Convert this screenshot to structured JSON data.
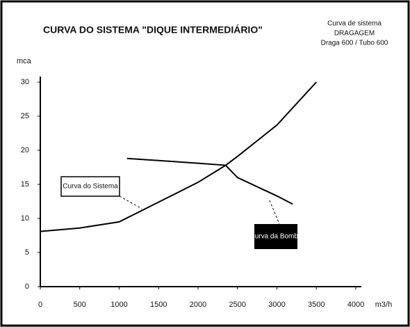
{
  "chart_data": {
    "type": "line",
    "title": "CURVA DO SISTEMA \"DIQUE INTERMEDIÁRIO\"",
    "subtitle": [
      "Curva de sistema",
      "DRAGAGEM",
      "Draga 600 / Tubo 600"
    ],
    "y_label": "mca",
    "x_label": "m3/h",
    "xlim": [
      0,
      4000
    ],
    "xticks": [
      0,
      500,
      1000,
      1500,
      2000,
      2500,
      3000,
      3500,
      4000
    ],
    "ylim": [
      0,
      30
    ],
    "yticks": [
      0,
      5,
      10,
      15,
      20,
      25,
      30
    ],
    "grid": false,
    "series": [
      {
        "name": "Curva do Sistema",
        "color": "#000000",
        "x": [
          0,
          500,
          1000,
          1500,
          2000,
          2350,
          2500,
          3000,
          3500
        ],
        "values": [
          8.1,
          8.6,
          9.5,
          12.4,
          15.3,
          17.8,
          19.1,
          23.7,
          30
        ]
      },
      {
        "name": "Curva da Bomba",
        "color": "#000000",
        "x": [
          1100,
          1500,
          2000,
          2350,
          2500,
          3000,
          3200
        ],
        "values": [
          18.8,
          18.5,
          18.1,
          17.8,
          16.0,
          13.3,
          12.1
        ]
      }
    ]
  }
}
